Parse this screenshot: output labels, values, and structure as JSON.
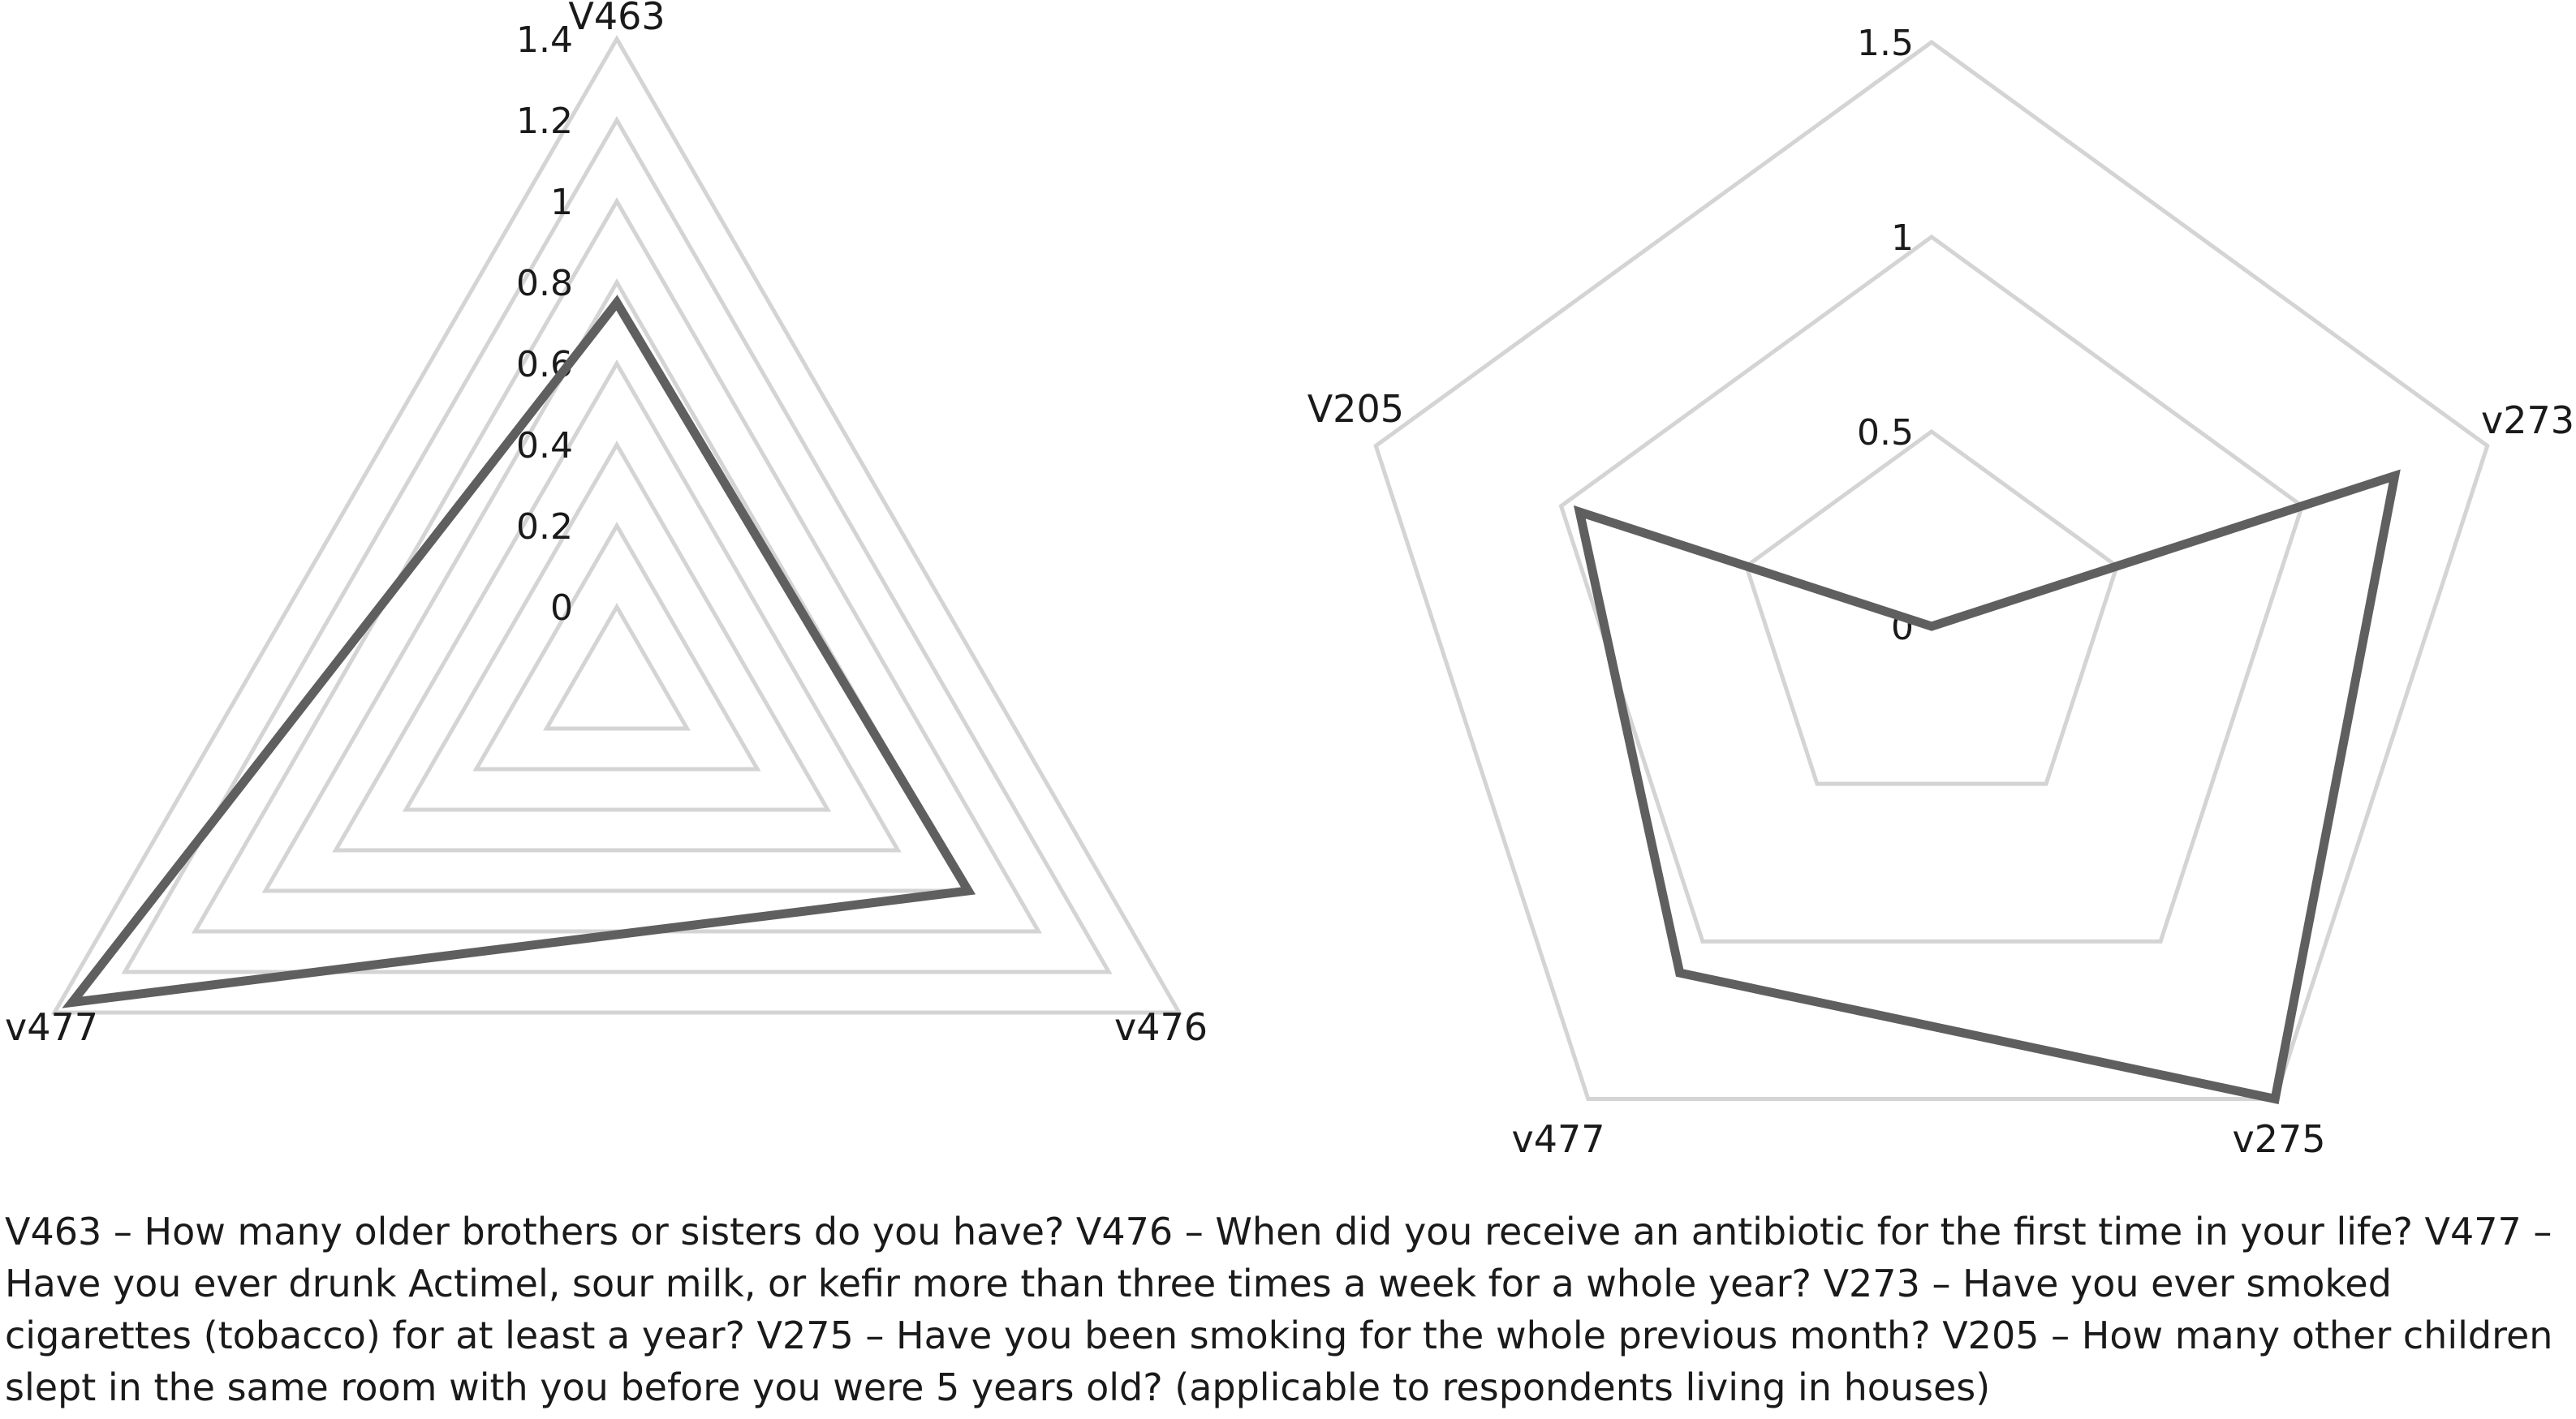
{
  "chart_data": [
    {
      "type": "radar",
      "axes": [
        "V463",
        "v476",
        "v477"
      ],
      "ticks": [
        "0",
        "0.2",
        "0.4",
        "0.6",
        "0.8",
        "1",
        "1.2",
        "1.4"
      ],
      "range": [
        -0.2,
        1.4
      ],
      "series": [
        {
          "values": [
            0.75,
            0.8,
            1.35
          ]
        }
      ],
      "grid": true,
      "grid_color": "#d4d4d4",
      "line_color": "#5f5f5f"
    },
    {
      "type": "radar",
      "axes": [
        "",
        "v273",
        "v275",
        "v477",
        "V205"
      ],
      "ticks": [
        "0",
        "0.5",
        "1",
        "1.5"
      ],
      "range": [
        0,
        1.5
      ],
      "series": [
        {
          "values": [
            0,
            1.25,
            1.5,
            1.1,
            0.95
          ]
        }
      ],
      "grid": true,
      "grid_color": "#d4d4d4",
      "line_color": "#5f5f5f"
    }
  ],
  "caption": "V463 – How many older brothers or sisters do you have? V476 – When did you receive an antibiotic for the first time in your life? V477 – Have you ever drunk Actimel, sour milk, or kefir more than three times a week for a whole year? V273 – Have you ever smoked cigarettes (tobacco) for at least a year? V275 – Have you been smoking for the whole previous month? V205 – How many other children slept in the same room with you before you were 5 years old? (applicable to respondents living in houses)"
}
